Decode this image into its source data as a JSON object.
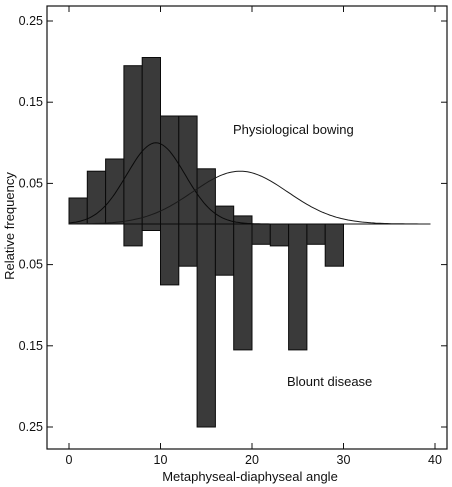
{
  "chart_data": {
    "type": "bar",
    "title": "",
    "xlabel": "Metaphyseal-diaphyseal angle",
    "ylabel": "Relative frequency",
    "xlim": [
      -2,
      41
    ],
    "ylim": [
      -0.26,
      0.265
    ],
    "x_ticks": [
      0,
      10,
      20,
      30,
      40
    ],
    "y_ticks": [
      {
        "value": 0.25,
        "label": "0.25"
      },
      {
        "value": 0.15,
        "label": "0.15"
      },
      {
        "value": 0.05,
        "label": "0.05"
      },
      {
        "value": -0.05,
        "label": "0.05"
      },
      {
        "value": -0.15,
        "label": "0.15"
      },
      {
        "value": -0.25,
        "label": "0.25"
      }
    ],
    "bin_width": 2,
    "x": [
      1,
      3,
      5,
      7,
      9,
      11,
      13,
      15,
      17,
      19,
      21,
      23,
      25,
      27,
      29
    ],
    "series": [
      {
        "name": "Physiological bowing",
        "values": [
          0.032,
          0.065,
          0.08,
          0.195,
          0.205,
          0.133,
          0.133,
          0.068,
          0.022,
          0.01,
          0.0,
          0.0,
          0.0,
          0.0,
          0.0
        ]
      },
      {
        "name": "Blount disease",
        "values": [
          0.0,
          0.0,
          0.0,
          -0.027,
          -0.008,
          -0.075,
          -0.052,
          -0.25,
          -0.063,
          -0.155,
          -0.025,
          -0.027,
          -0.155,
          -0.025,
          -0.052
        ]
      }
    ],
    "curves": [
      {
        "name": "Physiological bowing",
        "mean": 9.5,
        "sd": 3.2,
        "peak": 0.1
      },
      {
        "name": "Blount disease",
        "mean": 18.7,
        "sd": 5.2,
        "peak": 0.065
      }
    ],
    "annotations": [
      "Physiological bowing",
      "Blount disease"
    ],
    "grid": false,
    "legend": "none"
  }
}
